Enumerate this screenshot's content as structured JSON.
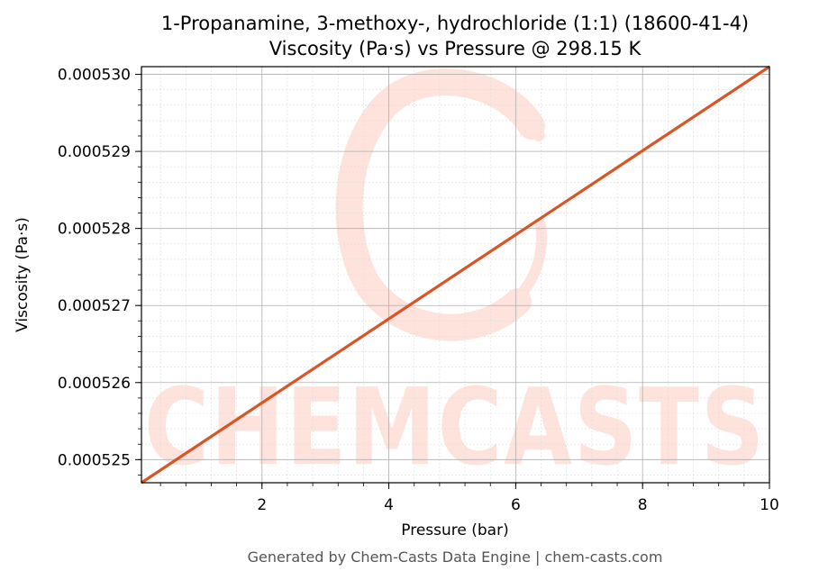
{
  "chart_data": {
    "type": "line",
    "title": "1-Propanamine, 3-methoxy-, hydrochloride (1:1) (18600-41-4)",
    "subtitle": "Viscosity (Pa·s) vs Pressure @ 298.15 K",
    "xlabel": "Pressure (bar)",
    "ylabel": "Viscosity (Pa·s)",
    "xlim": [
      0.1,
      10
    ],
    "ylim": [
      0.0005247,
      0.0005301
    ],
    "x_ticks": [
      2,
      4,
      6,
      8,
      10
    ],
    "x_tick_labels": [
      "2",
      "4",
      "6",
      "8",
      "10"
    ],
    "y_ticks": [
      0.000525,
      0.000526,
      0.000527,
      0.000528,
      0.000529,
      0.00053
    ],
    "y_tick_labels": [
      "0.000525",
      "0.000526",
      "0.000527",
      "0.000528",
      "0.000529",
      "0.000530"
    ],
    "grid": true,
    "series": [
      {
        "color": "#d95525",
        "x": [
          0.1,
          10
        ],
        "y": [
          0.0005247,
          0.0005301
        ]
      }
    ]
  },
  "watermark": "CHEMCASTS",
  "footer": "Generated by Chem-Casts Data Engine | chem-casts.com",
  "colors": {
    "line": "#d95525",
    "watermark": "#fde3dc",
    "grid": "#b0b0b0"
  }
}
